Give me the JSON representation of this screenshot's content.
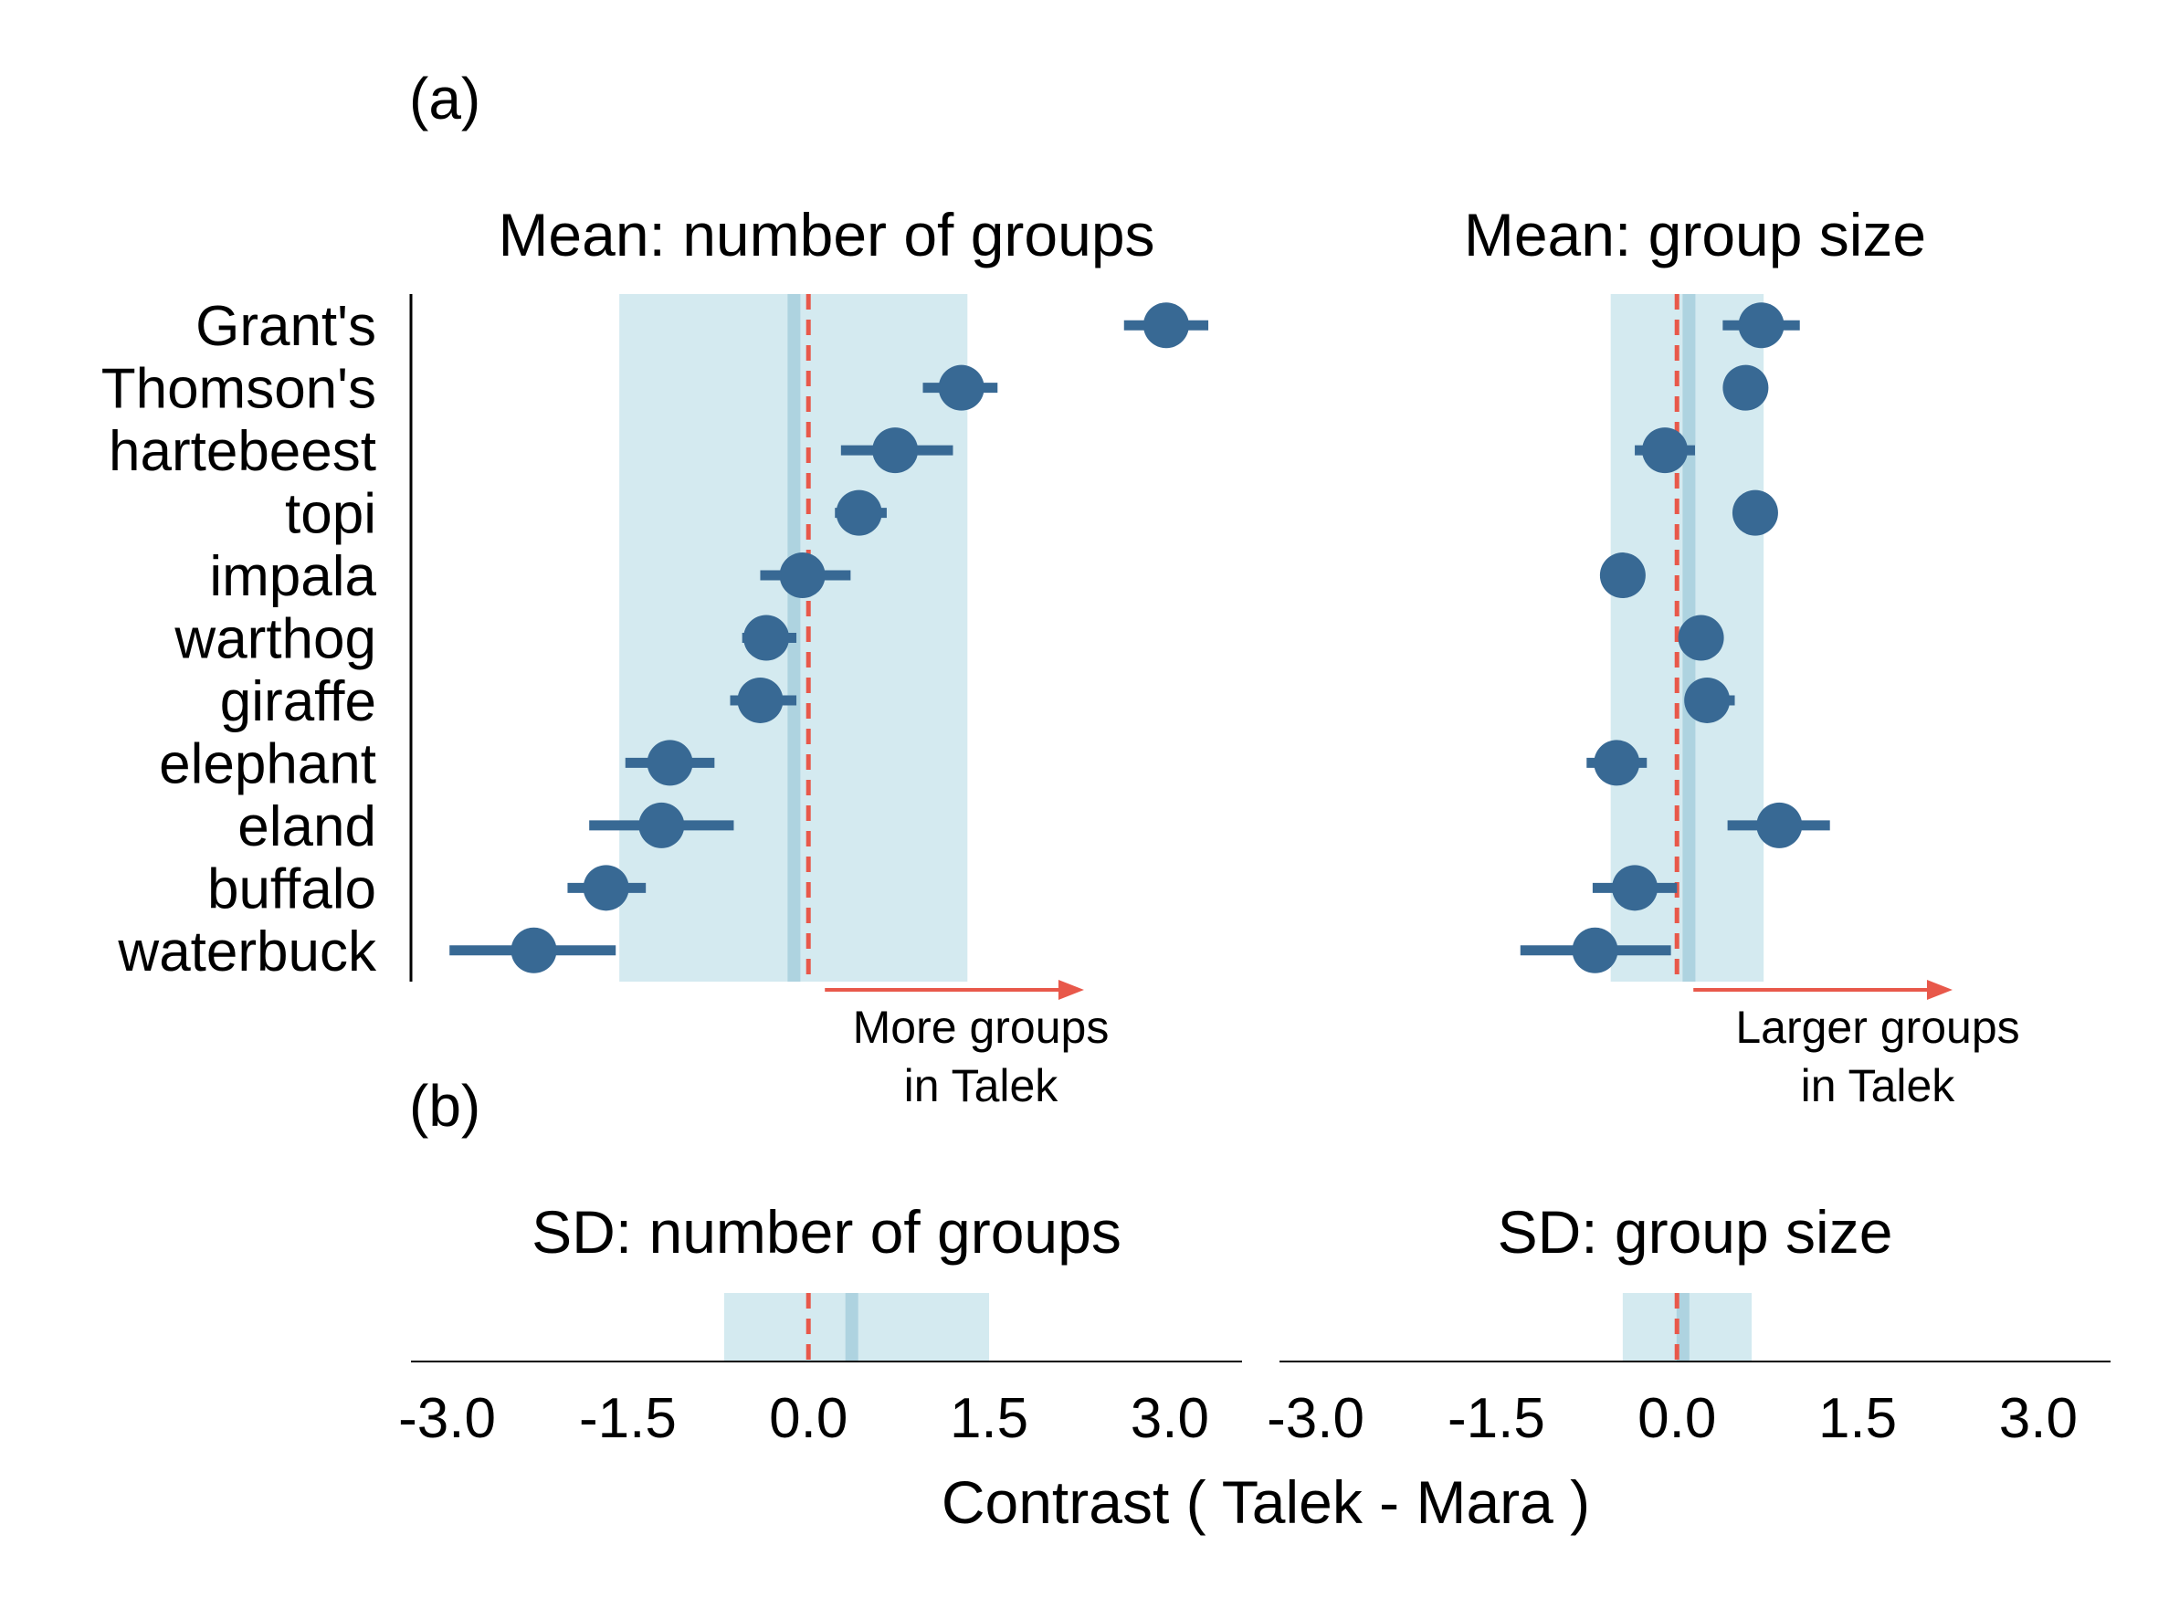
{
  "panel_labels": {
    "a": "(a)",
    "b": "(b)"
  },
  "species": [
    "Grant's",
    "Thomson's",
    "hartebeest",
    "topi",
    "impala",
    "warthog",
    "giraffe",
    "elephant",
    "eland",
    "buffalo",
    "waterbuck"
  ],
  "x_axis": {
    "label": "Contrast ( Talek - Mara )",
    "ticks": [
      -3.0,
      -1.5,
      0.0,
      1.5,
      3.0
    ],
    "tick_labels": [
      "-3.0",
      "-1.5",
      "0.0",
      "1.5",
      "3.0"
    ],
    "range": [
      -3.3,
      3.6
    ]
  },
  "annotations": {
    "groups_line1": "More groups",
    "groups_line2": "in Talek",
    "size_line1": "Larger groups",
    "size_line2": "in Talek"
  },
  "colors": {
    "point": "#386994",
    "band": "#d4eaf0",
    "band_line": "#aed3e0",
    "ref_line": "#e8584a",
    "axis": "#000000"
  },
  "chart_data": [
    {
      "type": "scatter",
      "title": "Mean: number of groups",
      "categories": [
        "Grant's",
        "Thomson's",
        "hartebeest",
        "topi",
        "impala",
        "warthog",
        "giraffe",
        "elephant",
        "eland",
        "buffalo",
        "waterbuck"
      ],
      "values": [
        2.97,
        1.27,
        0.72,
        0.42,
        -0.05,
        -0.35,
        -0.4,
        -1.15,
        -1.22,
        -1.68,
        -2.28
      ],
      "lower": [
        2.62,
        0.95,
        0.27,
        0.22,
        -0.4,
        -0.55,
        -0.65,
        -1.52,
        -1.82,
        -2.0,
        -2.98
      ],
      "upper": [
        3.32,
        1.57,
        1.2,
        0.65,
        0.35,
        -0.1,
        -0.1,
        -0.78,
        -0.62,
        -1.35,
        -1.6
      ],
      "band": [
        -1.57,
        1.32
      ],
      "band_center": -0.12,
      "reference_line": 0.0
    },
    {
      "type": "scatter",
      "title": "Mean: group size",
      "categories": [
        "Grant's",
        "Thomson's",
        "hartebeest",
        "topi",
        "impala",
        "warthog",
        "giraffe",
        "elephant",
        "eland",
        "buffalo",
        "waterbuck"
      ],
      "values": [
        0.7,
        0.57,
        -0.1,
        0.65,
        -0.45,
        0.2,
        0.25,
        -0.5,
        0.85,
        -0.35,
        -0.68
      ],
      "lower": [
        0.38,
        0.57,
        -0.35,
        0.65,
        -0.45,
        0.2,
        0.1,
        -0.75,
        0.42,
        -0.7,
        -1.3
      ],
      "upper": [
        1.02,
        0.57,
        0.15,
        0.65,
        -0.45,
        0.2,
        0.48,
        -0.25,
        1.27,
        0.0,
        -0.05
      ],
      "band": [
        -0.55,
        0.72
      ],
      "band_center": 0.1,
      "reference_line": 0.0
    },
    {
      "type": "scatter",
      "title": "SD: number of groups",
      "band": [
        -0.7,
        1.5
      ],
      "band_center": 0.36,
      "reference_line": 0.0
    },
    {
      "type": "scatter",
      "title": "SD: group size",
      "band": [
        -0.45,
        0.62
      ],
      "band_center": 0.05,
      "reference_line": 0.0
    }
  ]
}
